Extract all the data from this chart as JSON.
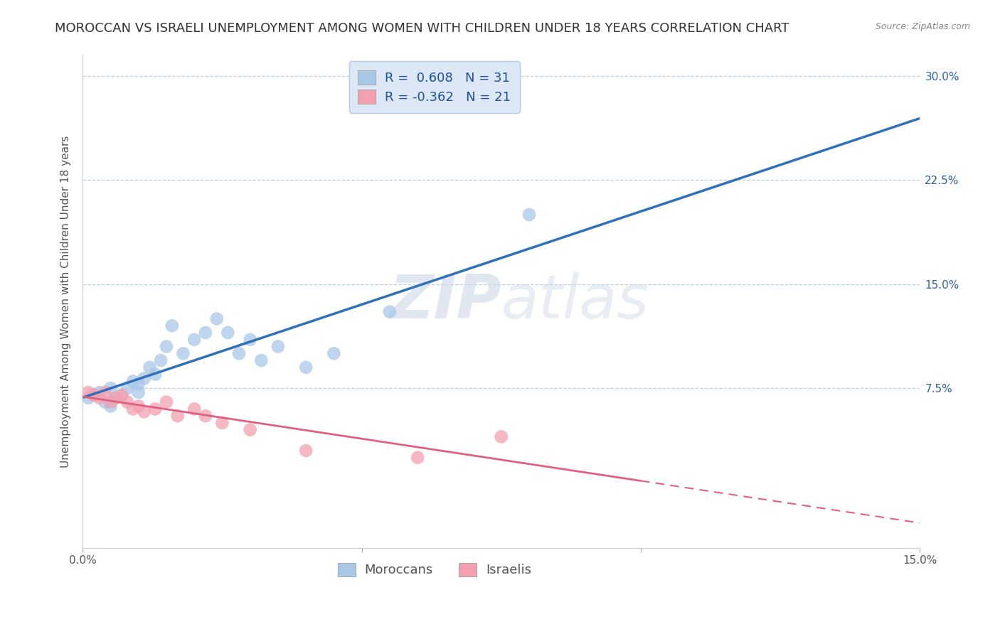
{
  "title": "MOROCCAN VS ISRAELI UNEMPLOYMENT AMONG WOMEN WITH CHILDREN UNDER 18 YEARS CORRELATION CHART",
  "source": "Source: ZipAtlas.com",
  "ylabel": "Unemployment Among Women with Children Under 18 years",
  "legend_bottom": [
    "Moroccans",
    "Israelis"
  ],
  "moroccan_R": "0.608",
  "moroccan_N": "31",
  "israeli_R": "-0.362",
  "israeli_N": "21",
  "moroccan_color": "#a8c8e8",
  "israeli_color": "#f4a0b0",
  "moroccan_line_color": "#3070b8",
  "israeli_line_color": "#e06080",
  "background_color": "#ffffff",
  "grid_color": "#b8cce0",
  "xlim": [
    0.0,
    0.15
  ],
  "ylim": [
    -0.04,
    0.315
  ],
  "yticks": [
    0.075,
    0.15,
    0.225,
    0.3
  ],
  "ytick_labels": [
    "7.5%",
    "15.0%",
    "22.5%",
    "30.0%"
  ],
  "xticks": [
    0.0,
    0.05,
    0.1,
    0.15
  ],
  "xtick_labels": [
    "0.0%",
    "",
    "",
    "15.0%"
  ],
  "moroccan_x": [
    0.001,
    0.002,
    0.003,
    0.004,
    0.005,
    0.005,
    0.006,
    0.007,
    0.008,
    0.009,
    0.01,
    0.01,
    0.011,
    0.012,
    0.013,
    0.014,
    0.015,
    0.016,
    0.018,
    0.02,
    0.022,
    0.024,
    0.026,
    0.028,
    0.03,
    0.032,
    0.035,
    0.04,
    0.045,
    0.055,
    0.08
  ],
  "moroccan_y": [
    0.068,
    0.07,
    0.072,
    0.065,
    0.062,
    0.075,
    0.068,
    0.07,
    0.075,
    0.08,
    0.072,
    0.078,
    0.082,
    0.09,
    0.085,
    0.095,
    0.105,
    0.12,
    0.1,
    0.11,
    0.115,
    0.125,
    0.115,
    0.1,
    0.11,
    0.095,
    0.105,
    0.09,
    0.1,
    0.13,
    0.2
  ],
  "israeli_x": [
    0.001,
    0.002,
    0.003,
    0.004,
    0.005,
    0.006,
    0.007,
    0.008,
    0.009,
    0.01,
    0.011,
    0.013,
    0.015,
    0.017,
    0.02,
    0.022,
    0.025,
    0.03,
    0.04,
    0.06,
    0.075
  ],
  "israeli_y": [
    0.072,
    0.07,
    0.068,
    0.072,
    0.065,
    0.068,
    0.07,
    0.065,
    0.06,
    0.062,
    0.058,
    0.06,
    0.065,
    0.055,
    0.06,
    0.055,
    0.05,
    0.045,
    0.03,
    0.025,
    0.04
  ],
  "watermark_zip": "ZIP",
  "watermark_atlas": "atlas",
  "legend_box_color": "#dce8f5",
  "legend_border_color": "#b0c8e0",
  "title_fontsize": 13,
  "axis_label_fontsize": 11,
  "tick_fontsize": 11,
  "legend_fontsize": 13,
  "dot_size": 180
}
